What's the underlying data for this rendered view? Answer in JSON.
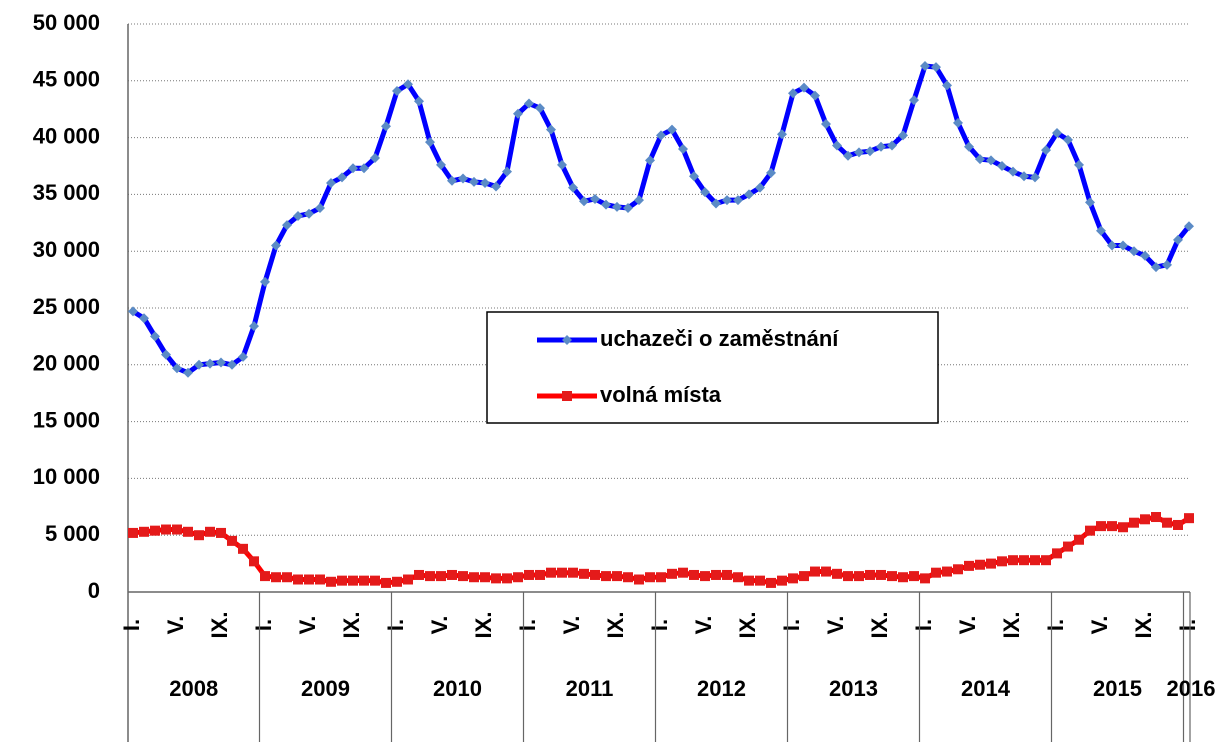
{
  "chart_data": {
    "type": "line",
    "categories": [
      "I.",
      null,
      null,
      null,
      "V.",
      null,
      null,
      null,
      "IX.",
      null,
      null,
      null,
      "I.",
      null,
      null,
      null,
      "V.",
      null,
      null,
      null,
      "IX.",
      null,
      null,
      null,
      "I.",
      null,
      null,
      null,
      "V.",
      null,
      null,
      null,
      "IX.",
      null,
      null,
      null,
      "I.",
      null,
      null,
      null,
      "V.",
      null,
      null,
      null,
      "IX.",
      null,
      null,
      null,
      "I.",
      null,
      null,
      null,
      "V.",
      null,
      null,
      null,
      "IX.",
      null,
      null,
      null,
      "I.",
      null,
      null,
      null,
      "V.",
      null,
      null,
      null,
      "IX.",
      null,
      null,
      null,
      "I.",
      null,
      null,
      null,
      "V.",
      null,
      null,
      null,
      "IX.",
      null,
      null,
      null,
      "I.",
      null,
      null,
      null,
      "V.",
      null,
      null,
      null,
      "IX.",
      null,
      null,
      null,
      "I."
    ],
    "years": [
      "2008",
      "2009",
      "2010",
      "2011",
      "2012",
      "2013",
      "2014",
      "2015",
      "2016"
    ],
    "series": [
      {
        "name": "uchazeči o zaměstnání",
        "color": "#0000ff",
        "marker_color": "#5b8bc6",
        "marker": "diamond",
        "values": [
          24700,
          24100,
          22500,
          20900,
          19700,
          19300,
          20000,
          20100,
          20200,
          20000,
          20700,
          23400,
          27300,
          30500,
          32300,
          33100,
          33300,
          33800,
          36000,
          36500,
          37300,
          37300,
          38200,
          41000,
          44100,
          44700,
          43200,
          39600,
          37600,
          36200,
          36400,
          36100,
          36000,
          35700,
          37000,
          42100,
          43000,
          42600,
          40700,
          37600,
          35600,
          34400,
          34600,
          34100,
          33900,
          33800,
          34500,
          38000,
          40200,
          40700,
          39000,
          36600,
          35200,
          34200,
          34500,
          34500,
          35000,
          35600,
          36900,
          40300,
          43900,
          44400,
          43700,
          41200,
          39300,
          38400,
          38700,
          38800,
          39200,
          39300,
          40200,
          43300,
          46300,
          46200,
          44600,
          41300,
          39200,
          38100,
          38000,
          37500,
          37000,
          36600,
          36500,
          38900,
          40400,
          39800,
          37600,
          34300,
          31800,
          30500,
          30500,
          30000,
          29600,
          28600,
          28800,
          31000,
          32200
        ]
      },
      {
        "name": "volná místa",
        "color": "#ff0000",
        "marker_color": "#e41a1a",
        "marker": "square",
        "values": [
          5200,
          5300,
          5400,
          5500,
          5500,
          5300,
          5000,
          5300,
          5200,
          4500,
          3800,
          2700,
          1400,
          1300,
          1300,
          1100,
          1100,
          1100,
          900,
          1000,
          1000,
          1000,
          1000,
          800,
          900,
          1100,
          1500,
          1400,
          1400,
          1500,
          1400,
          1300,
          1300,
          1200,
          1200,
          1300,
          1500,
          1500,
          1700,
          1700,
          1700,
          1600,
          1500,
          1400,
          1400,
          1300,
          1100,
          1300,
          1300,
          1600,
          1700,
          1500,
          1400,
          1500,
          1500,
          1300,
          1000,
          1000,
          800,
          1000,
          1200,
          1400,
          1800,
          1800,
          1600,
          1400,
          1400,
          1500,
          1500,
          1400,
          1300,
          1400,
          1200,
          1700,
          1800,
          2000,
          2300,
          2400,
          2500,
          2700,
          2800,
          2800,
          2800,
          2800,
          3400,
          4000,
          4600,
          5400,
          5800,
          5800,
          5700,
          6100,
          6400,
          6600,
          6100,
          5900,
          6500
        ]
      }
    ],
    "ylim": [
      0,
      50000
    ],
    "yticks": [
      0,
      {
        "value": 5000,
        "label": "5 000"
      },
      {
        "value": 10000,
        "label": "10 000"
      },
      {
        "value": 15000,
        "label": "15 000"
      },
      {
        "value": 20000,
        "label": "20 000"
      },
      {
        "value": 25000,
        "label": "25 000"
      },
      {
        "value": 30000,
        "label": "30 000"
      },
      {
        "value": 35000,
        "label": "35 000"
      },
      {
        "value": 40000,
        "label": "40 000"
      },
      {
        "value": 45000,
        "label": "45 000"
      },
      {
        "value": 50000,
        "label": "50 000"
      }
    ],
    "grid": true,
    "legend_position": "center"
  }
}
